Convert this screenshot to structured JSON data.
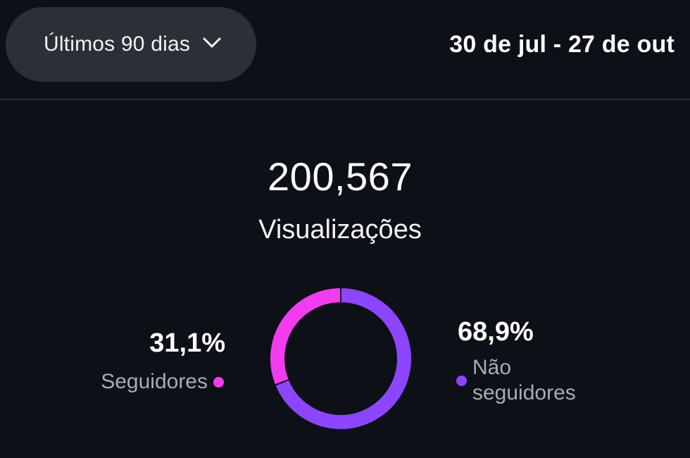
{
  "header": {
    "range_label": "Últimos 90 dias",
    "date_range": "30 de jul - 27 de out",
    "range_icon": "chevron-down-icon"
  },
  "summary": {
    "total": "200,567",
    "metric": "Visualizações"
  },
  "breakdown": {
    "followers": {
      "percent": "31,1%",
      "label": "Seguidores",
      "color": "#f33cf0"
    },
    "non_followers": {
      "percent": "68,9%",
      "label": "Não seguidores",
      "color": "#8c46ff"
    }
  },
  "chart_data": {
    "type": "pie",
    "categories": [
      "Seguidores",
      "Não seguidores"
    ],
    "values": [
      31.1,
      68.9
    ],
    "colors": [
      "#f33cf0",
      "#8c46ff"
    ],
    "title": "",
    "style": "donut"
  }
}
